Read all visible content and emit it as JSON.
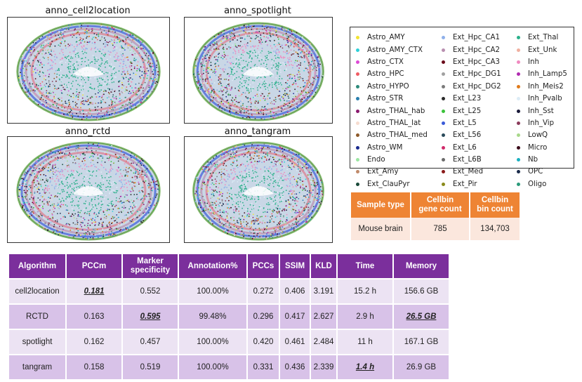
{
  "panels": [
    {
      "title": "anno_cell2location"
    },
    {
      "title": "anno_spotlight"
    },
    {
      "title": "anno_rctd"
    },
    {
      "title": "anno_tangram"
    }
  ],
  "legend": {
    "columns": [
      [
        {
          "label": "Astro_AMY",
          "color": "#f2e432"
        },
        {
          "label": "Astro_AMY_CTX",
          "color": "#2fd0d8"
        },
        {
          "label": "Astro_CTX",
          "color": "#dd4ad6"
        },
        {
          "label": "Astro_HPC",
          "color": "#f05c63"
        },
        {
          "label": "Astro_HYPO",
          "color": "#2c8a7a"
        },
        {
          "label": "Astro_STR",
          "color": "#2a7fae"
        },
        {
          "label": "Astro_THAL_hab",
          "color": "#8a1a6e"
        },
        {
          "label": "Astro_THAL_lat",
          "color": "#f6dccf"
        },
        {
          "label": "Astro_THAL_med",
          "color": "#8e5a2a"
        },
        {
          "label": "Astro_WM",
          "color": "#1a2a8e"
        },
        {
          "label": "Endo",
          "color": "#9be6a2"
        },
        {
          "label": "Ext_Amy",
          "color": "#c08a6a"
        },
        {
          "label": "Ext_ClauPyr",
          "color": "#1a4a3a"
        }
      ],
      [
        {
          "label": "Ext_Hpc_CA1",
          "color": "#8fb0ea"
        },
        {
          "label": "Ext_Hpc_CA2",
          "color": "#b98fb0"
        },
        {
          "label": "Ext_Hpc_CA3",
          "color": "#6a0a1a"
        },
        {
          "label": "Ext_Hpc_DG1",
          "color": "#a0a0a0"
        },
        {
          "label": "Ext_Hpc_DG2",
          "color": "#7a7a7a"
        },
        {
          "label": "Ext_L23",
          "color": "#2a2a2a"
        },
        {
          "label": "Ext_L25",
          "color": "#3ac23a"
        },
        {
          "label": "Ext_L5",
          "color": "#3a5ad8"
        },
        {
          "label": "Ext_L56",
          "color": "#2a4a5a"
        },
        {
          "label": "Ext_L6",
          "color": "#d02a6a"
        },
        {
          "label": "Ext_L6B",
          "color": "#6a6a6a"
        },
        {
          "label": "Ext_Med",
          "color": "#8a1a1a"
        },
        {
          "label": "Ext_Pir",
          "color": "#8a8a1a"
        }
      ],
      [
        {
          "label": "Ext_Thal",
          "color": "#2ab08a"
        },
        {
          "label": "Ext_Unk",
          "color": "#f0b0a0"
        },
        {
          "label": "Inh",
          "color": "#f08ac0"
        },
        {
          "label": "Inh_Lamp5",
          "color": "#b02ab0"
        },
        {
          "label": "Inh_Meis2",
          "color": "#e07a1a"
        },
        {
          "label": "Inh_Pvalb",
          "color": "#dcecf6"
        },
        {
          "label": "Inh_Sst",
          "color": "#1a1a3a"
        },
        {
          "label": "Inh_Vip",
          "color": "#8a3a5a"
        },
        {
          "label": "LowQ",
          "color": "#a8d88a"
        },
        {
          "label": "Micro",
          "color": "#3a0a1a"
        },
        {
          "label": "Nb",
          "color": "#1ab0c0"
        },
        {
          "label": "OPC",
          "color": "#1a2a4a"
        },
        {
          "label": "Oligo",
          "color": "#2a9a7a"
        }
      ]
    ]
  },
  "sample_table": {
    "headers": [
      "Sample type",
      "Cellbin\ngene count",
      "Cellbin\nbin count"
    ],
    "row": [
      "Mouse brain",
      "785",
      "134,703"
    ]
  },
  "main_table": {
    "headers": [
      "Algorithm",
      "PCCm",
      "Marker\nspecificity",
      "Annotation%",
      "PCCs",
      "SSIM",
      "KLD",
      "Time",
      "Memory"
    ],
    "rows": [
      {
        "cells": [
          "cell2location",
          "0.181",
          "0.552",
          "100.00%",
          "0.272",
          "0.406",
          "3.191",
          "15.2 h",
          "156.6 GB"
        ],
        "best": [
          1
        ]
      },
      {
        "cells": [
          "RCTD",
          "0.163",
          "0.595",
          "99.48%",
          "0.296",
          "0.417",
          "2.627",
          "2.9 h",
          "26.5 GB"
        ],
        "best": [
          2,
          8
        ]
      },
      {
        "cells": [
          "spotlight",
          "0.162",
          "0.457",
          "100.00%",
          "0.420",
          "0.461",
          "2.484",
          "11 h",
          "167.1 GB"
        ],
        "best": []
      },
      {
        "cells": [
          "tangram",
          "0.158",
          "0.519",
          "100.00%",
          "0.331",
          "0.436",
          "2.339",
          "1.4 h",
          "26.9 GB"
        ],
        "best": [
          7
        ]
      }
    ]
  }
}
